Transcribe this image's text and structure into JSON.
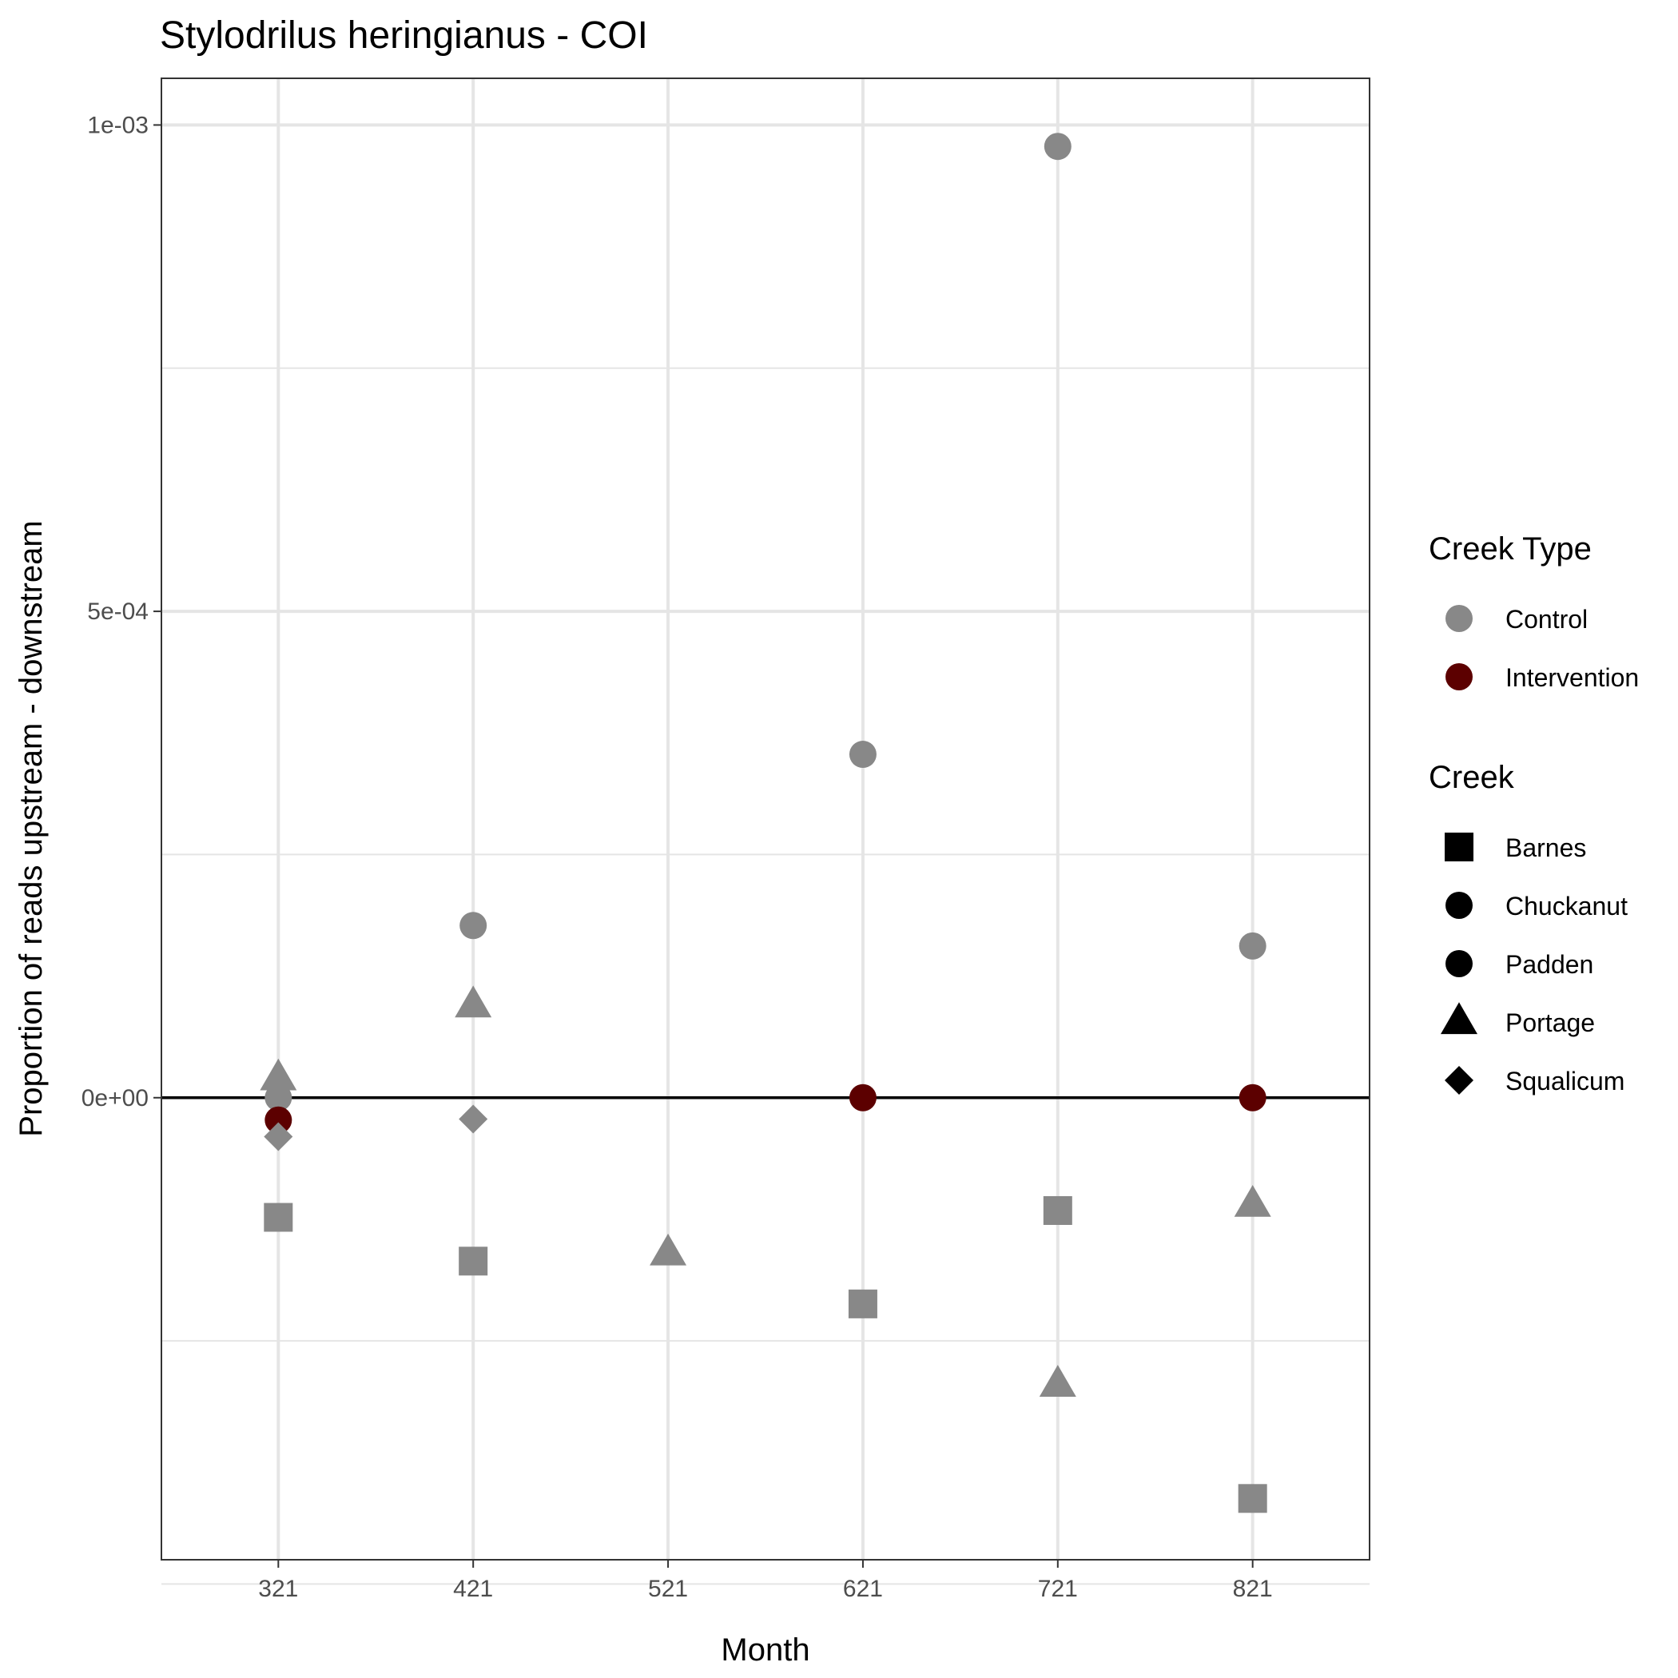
{
  "chart_data": {
    "type": "scatter",
    "title": "Stylodrilus heringianus - COI",
    "xlabel": "Month",
    "ylabel": "Proportion of reads upstream - downstream",
    "x_categories": [
      "321",
      "421",
      "521",
      "621",
      "721",
      "821"
    ],
    "y_ticks": [
      {
        "value": -0.0005,
        "label": ""
      },
      {
        "value": -0.00025,
        "label": ""
      },
      {
        "value": 0,
        "label": "0e+00"
      },
      {
        "value": 0.00025,
        "label": ""
      },
      {
        "value": 0.0005,
        "label": "5e-04"
      },
      {
        "value": 0.00075,
        "label": ""
      },
      {
        "value": 0.001,
        "label": "1e-03"
      }
    ],
    "ylim": [
      -0.000475,
      0.001048
    ],
    "grid": true,
    "hline": 0,
    "colors": {
      "Control": "#888888",
      "Intervention": "#5c0000",
      "hline": "#000000",
      "grid": "#e5e5e5",
      "panel_border": "#333333"
    },
    "legends": [
      {
        "title": "Creek Type",
        "items": [
          {
            "label": "Control",
            "shape": "circle",
            "color": "#888888"
          },
          {
            "label": "Intervention",
            "shape": "circle",
            "color": "#5c0000"
          }
        ]
      },
      {
        "title": "Creek",
        "items": [
          {
            "label": "Barnes",
            "shape": "square",
            "color": "#000000"
          },
          {
            "label": "Chuckanut",
            "shape": "circle",
            "color": "#000000"
          },
          {
            "label": "Padden",
            "shape": "circle",
            "color": "#000000"
          },
          {
            "label": "Portage",
            "shape": "triangle",
            "color": "#000000"
          },
          {
            "label": "Squalicum",
            "shape": "diamond",
            "color": "#000000"
          }
        ]
      }
    ],
    "legend_position": "right",
    "points": [
      {
        "x": "321",
        "y": 2e-05,
        "creek": "Portage",
        "creek_type": "Control"
      },
      {
        "x": "321",
        "y": 0.0,
        "creek": "Chuckanut",
        "creek_type": "Control"
      },
      {
        "x": "321",
        "y": -2.3e-05,
        "creek": "Padden",
        "creek_type": "Intervention"
      },
      {
        "x": "321",
        "y": -4e-05,
        "creek": "Squalicum",
        "creek_type": "Control"
      },
      {
        "x": "321",
        "y": -0.000123,
        "creek": "Barnes",
        "creek_type": "Control"
      },
      {
        "x": "421",
        "y": 0.000177,
        "creek": "Chuckanut",
        "creek_type": "Control"
      },
      {
        "x": "421",
        "y": 9.5e-05,
        "creek": "Portage",
        "creek_type": "Control"
      },
      {
        "x": "421",
        "y": -2.2e-05,
        "creek": "Squalicum",
        "creek_type": "Control"
      },
      {
        "x": "421",
        "y": -0.000168,
        "creek": "Barnes",
        "creek_type": "Control"
      },
      {
        "x": "521",
        "y": -0.00016,
        "creek": "Portage",
        "creek_type": "Control"
      },
      {
        "x": "621",
        "y": 0.000353,
        "creek": "Chuckanut",
        "creek_type": "Control"
      },
      {
        "x": "621",
        "y": 0.0,
        "creek": "Padden",
        "creek_type": "Intervention"
      },
      {
        "x": "621",
        "y": -0.000212,
        "creek": "Barnes",
        "creek_type": "Control"
      },
      {
        "x": "721",
        "y": 0.000978,
        "creek": "Chuckanut",
        "creek_type": "Control"
      },
      {
        "x": "721",
        "y": -0.000116,
        "creek": "Barnes",
        "creek_type": "Control"
      },
      {
        "x": "721",
        "y": -0.000295,
        "creek": "Portage",
        "creek_type": "Control"
      },
      {
        "x": "821",
        "y": 0.000156,
        "creek": "Chuckanut",
        "creek_type": "Control"
      },
      {
        "x": "821",
        "y": 0.0,
        "creek": "Padden",
        "creek_type": "Intervention"
      },
      {
        "x": "821",
        "y": -0.00011,
        "creek": "Portage",
        "creek_type": "Control"
      },
      {
        "x": "821",
        "y": -0.000412,
        "creek": "Barnes",
        "creek_type": "Control"
      }
    ]
  }
}
